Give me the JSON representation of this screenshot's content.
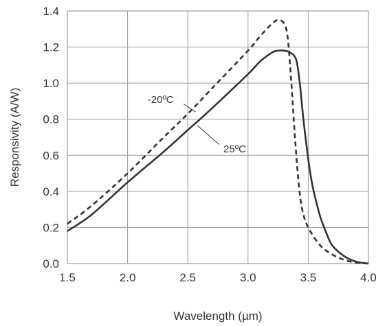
{
  "chart_data": {
    "type": "line",
    "title": "",
    "xlabel": "Wavelength  (µm)",
    "ylabel": "Responsivity  (A/W)",
    "xlim": [
      1.5,
      4.0
    ],
    "ylim": [
      0.0,
      1.4
    ],
    "xticks": [
      "1.5",
      "2.0",
      "2.5",
      "3.0",
      "3.5",
      "4.0"
    ],
    "yticks": [
      "0.0",
      "0.2",
      "0.4",
      "0.6",
      "0.8",
      "1.0",
      "1.2",
      "1.4"
    ],
    "grid": true,
    "series": [
      {
        "name": "-20ºC",
        "style": "dashed",
        "color": "#333333",
        "x": [
          1.5,
          1.7,
          2.0,
          2.3,
          2.5,
          2.7,
          3.0,
          3.1,
          3.2,
          3.25,
          3.3,
          3.33,
          3.36,
          3.39,
          3.42,
          3.45,
          3.5,
          3.6,
          3.7,
          3.8,
          3.9,
          4.0
        ],
        "y": [
          0.22,
          0.32,
          0.5,
          0.7,
          0.83,
          0.97,
          1.18,
          1.26,
          1.33,
          1.35,
          1.33,
          1.25,
          1.0,
          0.7,
          0.45,
          0.3,
          0.2,
          0.1,
          0.05,
          0.02,
          0.005,
          0.0
        ]
      },
      {
        "name": "25ºC",
        "style": "solid",
        "color": "#333333",
        "x": [
          1.5,
          1.7,
          2.0,
          2.3,
          2.5,
          2.7,
          3.0,
          3.1,
          3.2,
          3.25,
          3.3,
          3.35,
          3.4,
          3.43,
          3.46,
          3.5,
          3.53,
          3.56,
          3.6,
          3.65,
          3.7,
          3.8,
          3.9,
          4.0
        ],
        "y": [
          0.18,
          0.27,
          0.45,
          0.62,
          0.74,
          0.86,
          1.05,
          1.12,
          1.17,
          1.18,
          1.18,
          1.17,
          1.13,
          1.0,
          0.8,
          0.58,
          0.45,
          0.36,
          0.26,
          0.17,
          0.1,
          0.04,
          0.01,
          0.0
        ]
      }
    ],
    "annotations": [
      {
        "text": "-20ºC",
        "series": "-20ºC"
      },
      {
        "text": "25ºC",
        "series": "25ºC"
      }
    ]
  }
}
